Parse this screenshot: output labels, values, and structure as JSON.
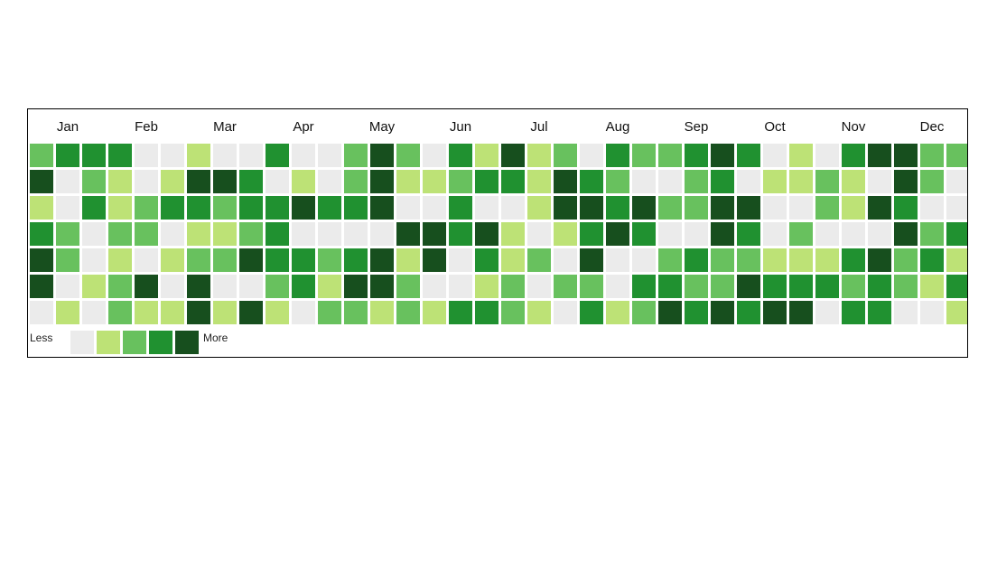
{
  "chart_data": {
    "type": "heatmap",
    "months": [
      "Jan",
      "Feb",
      "Mar",
      "Apr",
      "May",
      "Jun",
      "Jul",
      "Aug",
      "Sep",
      "Oct",
      "Nov",
      "Dec"
    ],
    "weeks": 36,
    "days_per_week": 7,
    "levels": [
      [
        2,
        3,
        3,
        3,
        0,
        0,
        1,
        0,
        0,
        3,
        0,
        0,
        2,
        4,
        2,
        0,
        3,
        1,
        4,
        1,
        2,
        0,
        3,
        2,
        2,
        3,
        4,
        3,
        0,
        1,
        0,
        3,
        4,
        4,
        2,
        2
      ],
      [
        4,
        0,
        2,
        1,
        0,
        1,
        4,
        4,
        3,
        0,
        1,
        0,
        2,
        4,
        1,
        1,
        2,
        3,
        3,
        1,
        4,
        3,
        2,
        0,
        0,
        2,
        3,
        0,
        1,
        1,
        2,
        1,
        0,
        4,
        2,
        0
      ],
      [
        1,
        0,
        3,
        1,
        2,
        3,
        3,
        2,
        3,
        3,
        4,
        3,
        3,
        4,
        0,
        0,
        3,
        0,
        0,
        1,
        4,
        4,
        3,
        4,
        2,
        2,
        4,
        4,
        0,
        0,
        2,
        1,
        4,
        3,
        0,
        0
      ],
      [
        3,
        2,
        0,
        2,
        2,
        0,
        1,
        1,
        2,
        3,
        0,
        0,
        0,
        0,
        4,
        4,
        3,
        4,
        1,
        0,
        1,
        3,
        4,
        3,
        0,
        0,
        4,
        3,
        0,
        2,
        0,
        0,
        0,
        4,
        2,
        3
      ],
      [
        4,
        2,
        0,
        1,
        0,
        1,
        2,
        2,
        4,
        3,
        3,
        2,
        3,
        4,
        1,
        4,
        0,
        3,
        1,
        2,
        0,
        4,
        0,
        0,
        2,
        3,
        2,
        2,
        1,
        1,
        1,
        3,
        4,
        2,
        3,
        1
      ],
      [
        4,
        0,
        1,
        2,
        4,
        0,
        4,
        0,
        0,
        2,
        3,
        1,
        4,
        4,
        2,
        0,
        0,
        1,
        2,
        0,
        2,
        2,
        0,
        3,
        3,
        2,
        2,
        4,
        3,
        3,
        3,
        2,
        3,
        2,
        1,
        3
      ],
      [
        0,
        1,
        0,
        2,
        1,
        1,
        4,
        1,
        4,
        1,
        0,
        2,
        2,
        1,
        2,
        1,
        3,
        3,
        2,
        1,
        0,
        3,
        1,
        2,
        4,
        3,
        4,
        3,
        4,
        4,
        0,
        3,
        3,
        0,
        0,
        1
      ]
    ],
    "legend": {
      "less_label": "Less",
      "more_label": "More"
    },
    "colors": [
      "#ebebeb",
      "#bde276",
      "#68c15e",
      "#209130",
      "#174f1e"
    ]
  }
}
